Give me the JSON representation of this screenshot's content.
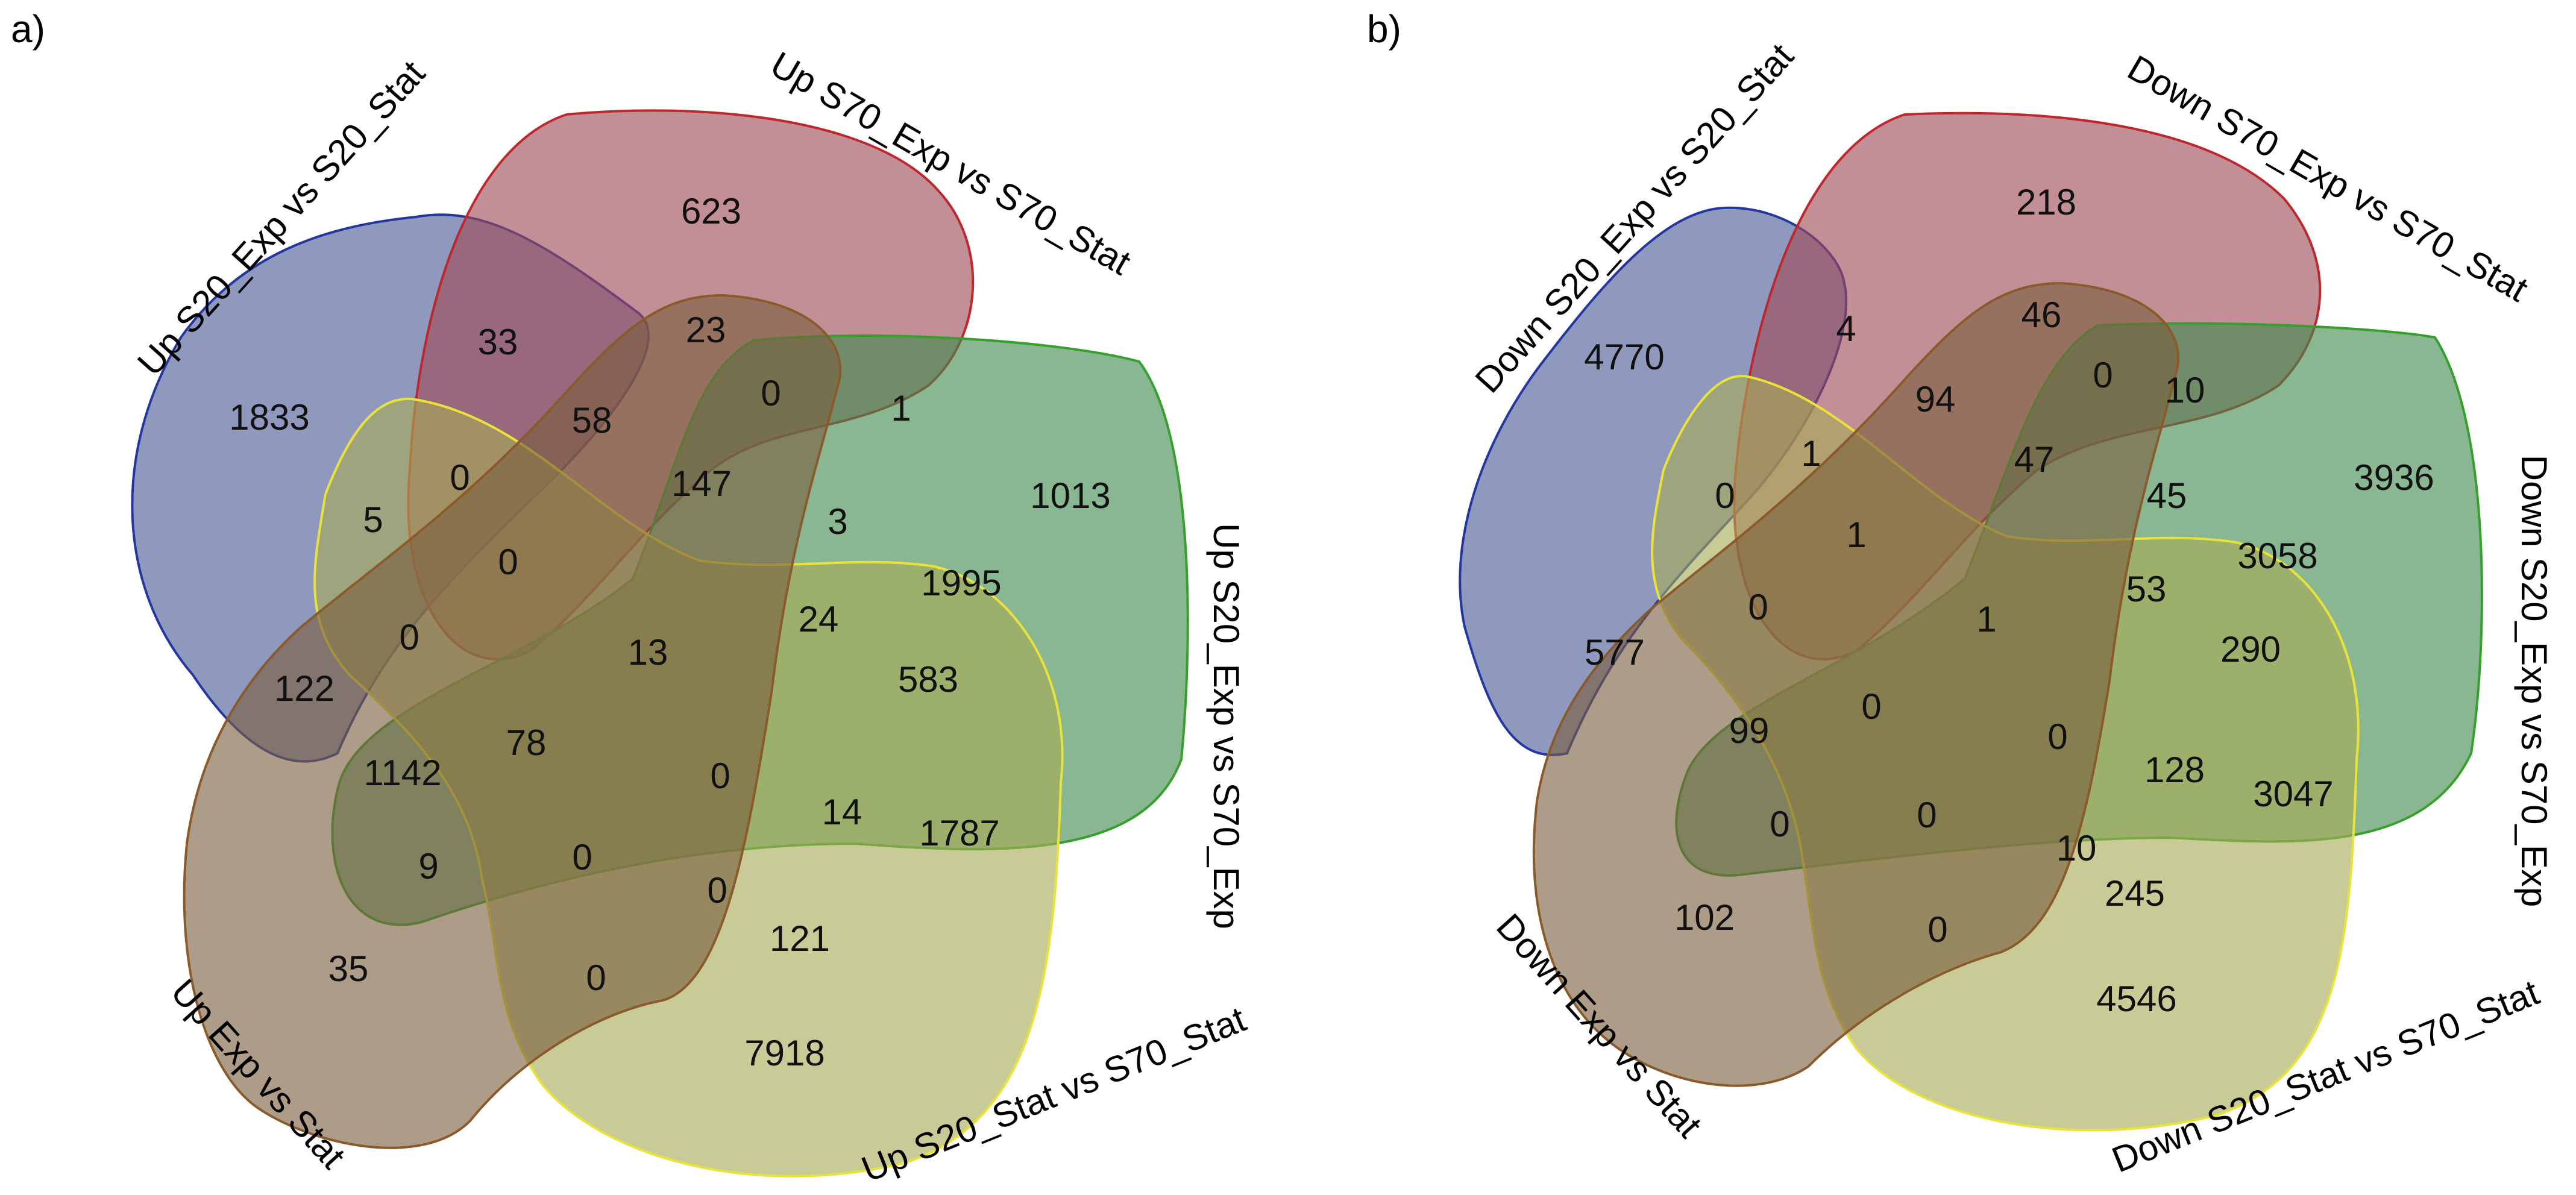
{
  "panels": [
    {
      "id": "a",
      "panel_label": "a)",
      "sets": [
        {
          "key": "blue",
          "label": "Up S20_Exp vs S20_Stat",
          "fill": "#4a5a95",
          "stroke": "#2436a0"
        },
        {
          "key": "red",
          "label": "Up S70_Exp vs S70_Stat",
          "fill": "#9e4a55",
          "stroke": "#c0272d"
        },
        {
          "key": "green",
          "label": "Up S20_Exp vs S70_Exp",
          "fill": "#3f8a4e",
          "stroke": "#36a02c"
        },
        {
          "key": "yellow",
          "label": "Up S20_Stat vs S70_Stat",
          "fill": "#a8ab55",
          "stroke": "#e8e23a"
        },
        {
          "key": "brown",
          "label": "Up Exp vs Stat",
          "fill": "#7b5f3f",
          "stroke": "#8a5a2b"
        }
      ],
      "counts": [
        "623",
        "33",
        "23",
        "1833",
        "58",
        "0",
        "1",
        "1013",
        "147",
        "0",
        "5",
        "3",
        "1995",
        "0",
        "24",
        "583",
        "13",
        "0",
        "122",
        "78",
        "1142",
        "0",
        "14",
        "1787",
        "9",
        "0",
        "0",
        "121",
        "35",
        "0",
        "7918"
      ]
    },
    {
      "id": "b",
      "panel_label": "b)",
      "sets": [
        {
          "key": "blue",
          "label": "Down S20_Exp vs S20_Stat",
          "fill": "#4a5a95",
          "stroke": "#2436a0"
        },
        {
          "key": "red",
          "label": "Down S70_Exp vs S70_Stat",
          "fill": "#9e4a55",
          "stroke": "#c0272d"
        },
        {
          "key": "green",
          "label": "Down S20_Exp vs S70_Exp",
          "fill": "#3f8a4e",
          "stroke": "#36a02c"
        },
        {
          "key": "yellow",
          "label": "Down S20_Stat vs S70_Stat",
          "fill": "#a8ab55",
          "stroke": "#e8e23a"
        },
        {
          "key": "brown",
          "label": "Down Exp vs Stat",
          "fill": "#7b5f3f",
          "stroke": "#8a5a2b"
        }
      ],
      "counts": [
        "218",
        "4",
        "46",
        "4770",
        "94",
        "0",
        "10",
        "1",
        "47",
        "3936",
        "45",
        "0",
        "3058",
        "1",
        "53",
        "1",
        "290",
        "0",
        "577",
        "99",
        "0",
        "0",
        "128",
        "3047",
        "0",
        "0",
        "10",
        "245",
        "102",
        "0",
        "4546"
      ]
    }
  ]
}
